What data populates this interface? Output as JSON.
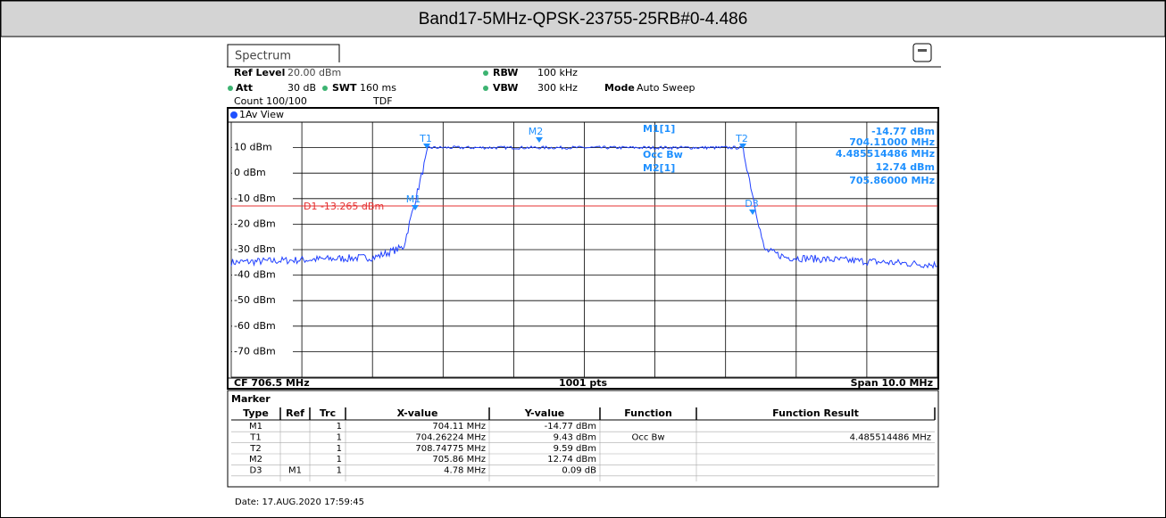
{
  "header": {
    "title": "Band17-5MHz-QPSK-23755-25RB#0-4.486"
  },
  "tab": "Spectrum",
  "settings": {
    "ref_level_label": "Ref Level",
    "ref_level": "20.00 dBm",
    "att_label": "Att",
    "att": "30 dB",
    "swt_label": "SWT",
    "swt": "160 ms",
    "rbw_label": "RBW",
    "rbw": "100 kHz",
    "vbw_label": "VBW",
    "vbw": "300 kHz",
    "mode_label": "Mode",
    "mode": "Auto Sweep",
    "count": "Count 100/100",
    "tdf": "TDF"
  },
  "view": "1Av View",
  "y_labels": [
    "10 dBm",
    "0 dBm",
    "-10 dBm",
    "-20 dBm",
    "-30 dBm",
    "-40 dBm",
    "-50 dBm",
    "-60 dBm",
    "-70 dBm"
  ],
  "plot_markers": [
    "T1",
    "M1",
    "M2",
    "T2",
    "D3"
  ],
  "d1_label": "D1  -13.265 dBm",
  "readout": {
    "m1": "M1[1]",
    "m1_y": "-14.77 dBm",
    "m1_x": "704.11000 MHz",
    "occ": "Occ Bw",
    "occ_val": "4.485514486 MHz",
    "m2": "M2[1]",
    "m2_y": "12.74 dBm",
    "m2_x": "705.86000 MHz"
  },
  "footer": {
    "cf": "CF 706.5 MHz",
    "pts": "1001 pts",
    "span": "Span 10.0 MHz"
  },
  "table": {
    "title": "Marker",
    "columns": [
      "Type",
      "Ref",
      "Trc",
      "X-value",
      "Y-value",
      "Function",
      "Function Result"
    ],
    "rows": [
      [
        "M1",
        "",
        "1",
        "704.11 MHz",
        "-14.77 dBm",
        "",
        ""
      ],
      [
        "T1",
        "",
        "1",
        "704.26224 MHz",
        "9.43 dBm",
        "Occ Bw",
        "4.485514486 MHz"
      ],
      [
        "T2",
        "",
        "1",
        "708.74775 MHz",
        "9.59 dBm",
        "",
        ""
      ],
      [
        "M2",
        "",
        "1",
        "705.86 MHz",
        "12.74 dBm",
        "",
        ""
      ],
      [
        "D3",
        "M1",
        "1",
        "4.78 MHz",
        "0.09 dB",
        "",
        ""
      ]
    ]
  },
  "date": "Date: 17.AUG.2020  17:59:45"
}
